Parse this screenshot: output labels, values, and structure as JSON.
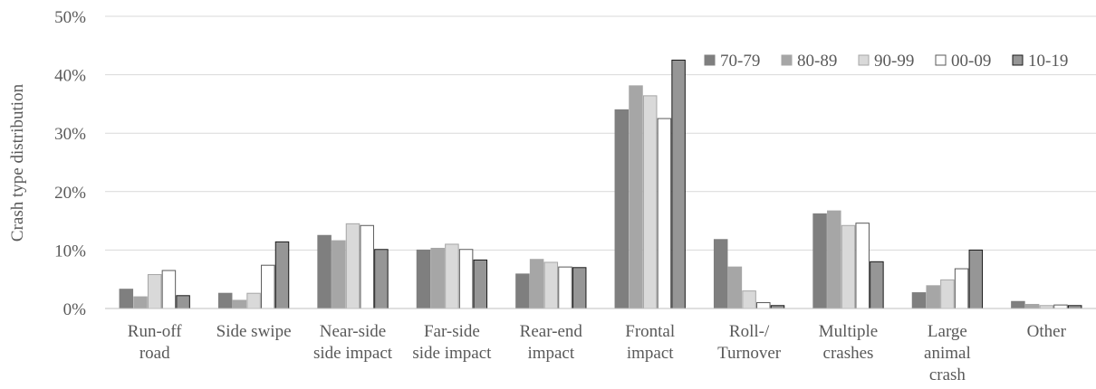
{
  "chart_data": {
    "type": "bar",
    "title": "",
    "xlabel": "",
    "ylabel": "Crash type distribution",
    "ylim": [
      0,
      0.5
    ],
    "yticks": [
      {
        "value": 0,
        "label": "0%"
      },
      {
        "value": 0.1,
        "label": "10%"
      },
      {
        "value": 0.2,
        "label": "20%"
      },
      {
        "value": 0.3,
        "label": "30%"
      },
      {
        "value": 0.4,
        "label": "40%"
      },
      {
        "value": 0.5,
        "label": "50%"
      }
    ],
    "grid": true,
    "legend_position": "top-right",
    "categories": [
      [
        "Run-off",
        "road"
      ],
      [
        "Side swipe"
      ],
      [
        "Near-side",
        "side impact"
      ],
      [
        "Far-side",
        "side impact"
      ],
      [
        "Rear-end",
        "impact"
      ],
      [
        "Frontal",
        "impact"
      ],
      [
        "Roll-/",
        "Turnover"
      ],
      [
        "Multiple",
        "crashes"
      ],
      [
        "Large",
        "animal",
        "crash"
      ],
      [
        "Other"
      ]
    ],
    "series": [
      {
        "name": "70-79",
        "color": "#7f7f7f",
        "stroke": "#7f7f7f",
        "values": [
          0.033,
          0.026,
          0.125,
          0.1,
          0.059,
          0.34,
          0.118,
          0.162,
          0.027,
          0.012
        ]
      },
      {
        "name": "80-89",
        "color": "#a6a6a6",
        "stroke": "#a6a6a6",
        "values": [
          0.02,
          0.014,
          0.116,
          0.103,
          0.084,
          0.381,
          0.071,
          0.167,
          0.039,
          0.007
        ]
      },
      {
        "name": "90-99",
        "color": "#d9d9d9",
        "stroke": "#a6a6a6",
        "values": [
          0.058,
          0.026,
          0.145,
          0.11,
          0.079,
          0.364,
          0.03,
          0.142,
          0.049,
          0.005
        ]
      },
      {
        "name": "00-09",
        "color": "#ffffff",
        "stroke": "#595959",
        "values": [
          0.065,
          0.074,
          0.142,
          0.101,
          0.071,
          0.325,
          0.01,
          0.146,
          0.068,
          0.006
        ]
      },
      {
        "name": "10-19",
        "color": "#969696",
        "stroke": "#1a1a1a",
        "values": [
          0.022,
          0.114,
          0.101,
          0.083,
          0.07,
          0.425,
          0.005,
          0.08,
          0.1,
          0.005
        ]
      }
    ]
  }
}
